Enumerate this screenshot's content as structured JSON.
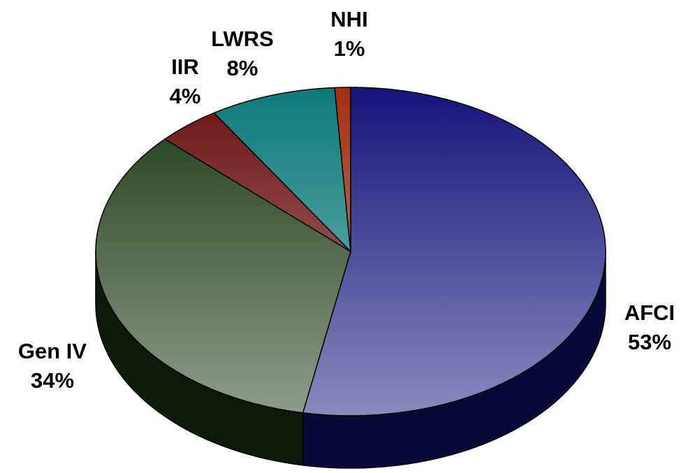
{
  "chart_data": {
    "type": "pie",
    "categories": [
      "AFCI",
      "Gen IV",
      "IIR",
      "LWRS",
      "NHI"
    ],
    "values": [
      53,
      34,
      4,
      8,
      1
    ],
    "value_labels": [
      "53%",
      "34%",
      "4%",
      "8%",
      "1%"
    ],
    "colors": [
      "#14147a",
      "#1c3a14",
      "#6a1010",
      "#0e7a7a",
      "#a03010"
    ]
  }
}
